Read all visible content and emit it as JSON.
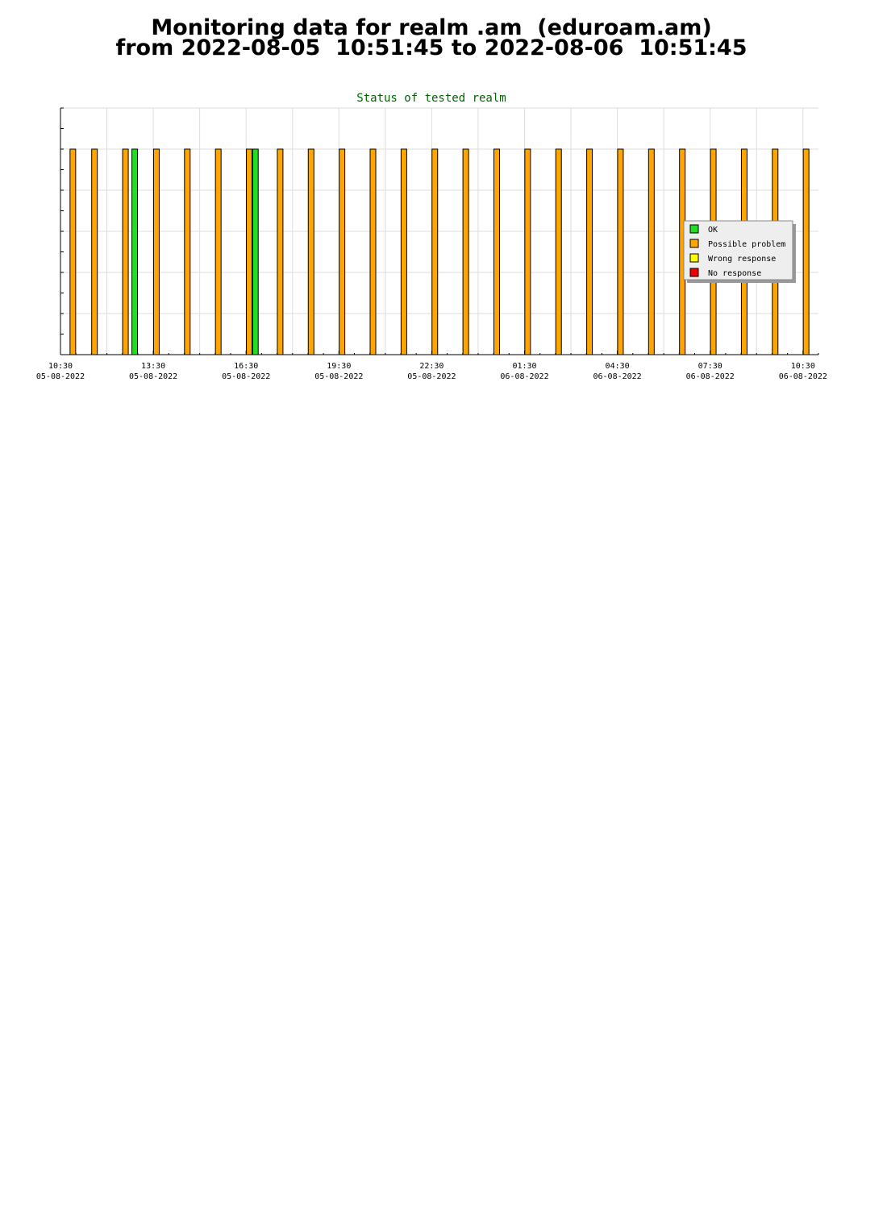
{
  "page": {
    "title_line1": "Monitoring data for realm .am  (eduroam.am)",
    "title_line2": "from 2022-08-05  10:51:45 to 2022-08-06  10:51:45"
  },
  "chart_data": {
    "type": "bar",
    "title": "Status of tested realm",
    "xlabel": "",
    "ylabel": "",
    "x_axis": {
      "range_hours": [
        0,
        24.5
      ],
      "ticks": [
        {
          "hour": 0,
          "time": "10:30",
          "date": "05-08-2022"
        },
        {
          "hour": 3,
          "time": "13:30",
          "date": "05-08-2022"
        },
        {
          "hour": 6,
          "time": "16:30",
          "date": "05-08-2022"
        },
        {
          "hour": 9,
          "time": "19:30",
          "date": "05-08-2022"
        },
        {
          "hour": 12,
          "time": "22:30",
          "date": "05-08-2022"
        },
        {
          "hour": 15,
          "time": "01:30",
          "date": "06-08-2022"
        },
        {
          "hour": 18,
          "time": "04:30",
          "date": "06-08-2022"
        },
        {
          "hour": 21,
          "time": "07:30",
          "date": "06-08-2022"
        },
        {
          "hour": 24,
          "time": "10:30",
          "date": "06-08-2022"
        }
      ]
    },
    "y_axis": {
      "range": [
        0,
        6
      ],
      "grid_step": 1,
      "tick_labels": false
    },
    "grid": true,
    "legend_position": "right",
    "statuses": [
      {
        "name": "OK",
        "color": "#22dd22"
      },
      {
        "name": "Possible problem",
        "color": "#ffa500"
      },
      {
        "name": "Wrong response",
        "color": "#ffff00"
      },
      {
        "name": "No response",
        "color": "#ee0000"
      }
    ],
    "value": 5,
    "bars": [
      {
        "hour": 0.4,
        "status": "Possible problem"
      },
      {
        "hour": 1.1,
        "status": "Possible problem"
      },
      {
        "hour": 2.1,
        "status": "Possible problem"
      },
      {
        "hour": 2.4,
        "status": "OK"
      },
      {
        "hour": 3.1,
        "status": "Possible problem"
      },
      {
        "hour": 4.1,
        "status": "Possible problem"
      },
      {
        "hour": 5.1,
        "status": "Possible problem"
      },
      {
        "hour": 6.1,
        "status": "Possible problem"
      },
      {
        "hour": 6.3,
        "status": "OK"
      },
      {
        "hour": 7.1,
        "status": "Possible problem"
      },
      {
        "hour": 8.1,
        "status": "Possible problem"
      },
      {
        "hour": 9.1,
        "status": "Possible problem"
      },
      {
        "hour": 10.1,
        "status": "Possible problem"
      },
      {
        "hour": 11.1,
        "status": "Possible problem"
      },
      {
        "hour": 12.1,
        "status": "Possible problem"
      },
      {
        "hour": 13.1,
        "status": "Possible problem"
      },
      {
        "hour": 14.1,
        "status": "Possible problem"
      },
      {
        "hour": 15.1,
        "status": "Possible problem"
      },
      {
        "hour": 16.1,
        "status": "Possible problem"
      },
      {
        "hour": 17.1,
        "status": "Possible problem"
      },
      {
        "hour": 18.1,
        "status": "Possible problem"
      },
      {
        "hour": 19.1,
        "status": "Possible problem"
      },
      {
        "hour": 20.1,
        "status": "Possible problem"
      },
      {
        "hour": 21.1,
        "status": "Possible problem"
      },
      {
        "hour": 22.1,
        "status": "Possible problem"
      },
      {
        "hour": 23.1,
        "status": "Possible problem"
      },
      {
        "hour": 24.1,
        "status": "Possible problem"
      }
    ]
  }
}
